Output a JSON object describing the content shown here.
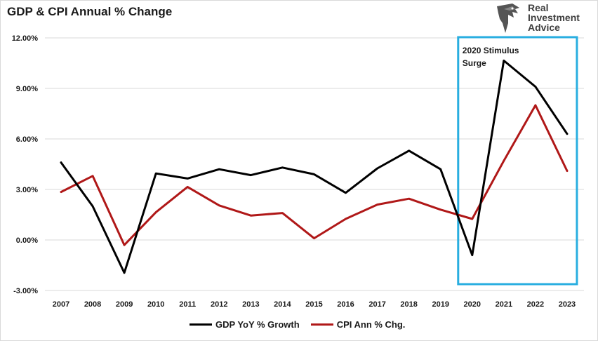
{
  "chart_data": {
    "type": "line",
    "title": "GDP & CPI Annual % Change",
    "x": [
      "2007",
      "2008",
      "2009",
      "2010",
      "2011",
      "2012",
      "2013",
      "2014",
      "2015",
      "2016",
      "2017",
      "2018",
      "2019",
      "2020",
      "2021",
      "2022",
      "2023"
    ],
    "series": [
      {
        "name": "GDP YoY % Growth",
        "color": "#000000",
        "values": [
          4.6,
          2.0,
          -1.95,
          3.95,
          3.65,
          4.2,
          3.85,
          4.3,
          3.9,
          2.8,
          4.25,
          5.3,
          4.2,
          -0.9,
          10.65,
          9.1,
          6.3
        ]
      },
      {
        "name": "CPI Ann % Chg.",
        "color": "#b01818",
        "values": [
          2.85,
          3.8,
          -0.3,
          1.65,
          3.15,
          2.05,
          1.45,
          1.6,
          0.1,
          1.25,
          2.1,
          2.45,
          1.8,
          1.25,
          4.7,
          8.0,
          4.1
        ]
      }
    ],
    "ylim": [
      -3,
      12
    ],
    "yticks": [
      "12.00%",
      "9.00%",
      "6.00%",
      "3.00%",
      "0.00%",
      "-3.00%"
    ],
    "ytick_values": [
      12,
      9,
      6,
      3,
      0,
      -3
    ],
    "grid": true,
    "legend_position": "bottom",
    "annotation": {
      "text_line1": "2020 Stimulus",
      "text_line2": "Surge",
      "from_category": "2020",
      "to_category": "2023",
      "box_color": "#29aee0"
    }
  },
  "logo": {
    "line1": "Real",
    "line2": "Investment",
    "line3": "Advice"
  }
}
